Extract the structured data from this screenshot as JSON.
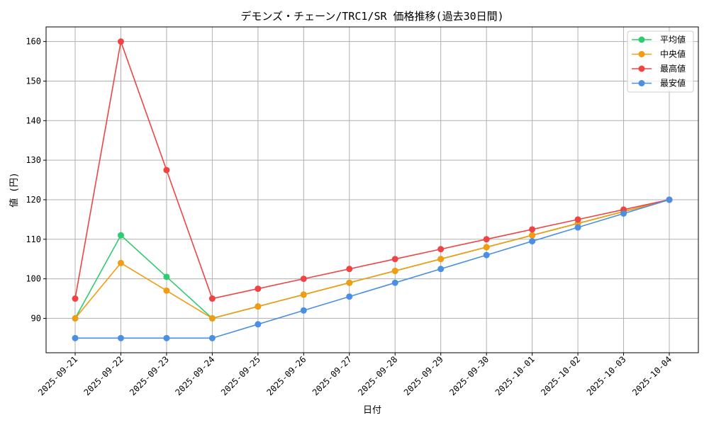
{
  "chart_data": {
    "type": "line",
    "title": "デモンズ・チェーン/TRC1/SR 価格推移(過去30日間)",
    "xlabel": "日付",
    "ylabel": "値 (円)",
    "categories": [
      "2025-09-21",
      "2025-09-22",
      "2025-09-23",
      "2025-09-24",
      "2025-09-25",
      "2025-09-26",
      "2025-09-27",
      "2025-09-28",
      "2025-09-29",
      "2025-09-30",
      "2025-10-01",
      "2025-10-02",
      "2025-10-03",
      "2025-10-04"
    ],
    "ylim": [
      81.3,
      163.7
    ],
    "yticks": [
      90,
      100,
      110,
      120,
      130,
      140,
      150,
      160
    ],
    "grid": true,
    "legend_position": "top-right",
    "series": [
      {
        "name": "平均値",
        "color": "#2ecc71",
        "values": [
          90,
          111,
          100.5,
          90,
          93,
          96,
          99,
          102,
          105,
          108,
          111,
          114,
          117,
          120
        ]
      },
      {
        "name": "中央値",
        "color": "#f39c12",
        "values": [
          90,
          104,
          97,
          90,
          93,
          96,
          99,
          102,
          105,
          108,
          111,
          114,
          117,
          120
        ]
      },
      {
        "name": "最高値",
        "color": "#ef4444",
        "values": [
          95,
          160,
          127.5,
          95,
          97.5,
          100,
          102.5,
          105,
          107.5,
          110,
          112.5,
          115,
          117.5,
          120
        ]
      },
      {
        "name": "最安値",
        "color": "#4a90e2",
        "values": [
          85,
          85,
          85,
          85,
          88.5,
          92,
          95.5,
          99,
          102.5,
          106,
          109.5,
          113,
          116.5,
          120
        ]
      }
    ]
  }
}
